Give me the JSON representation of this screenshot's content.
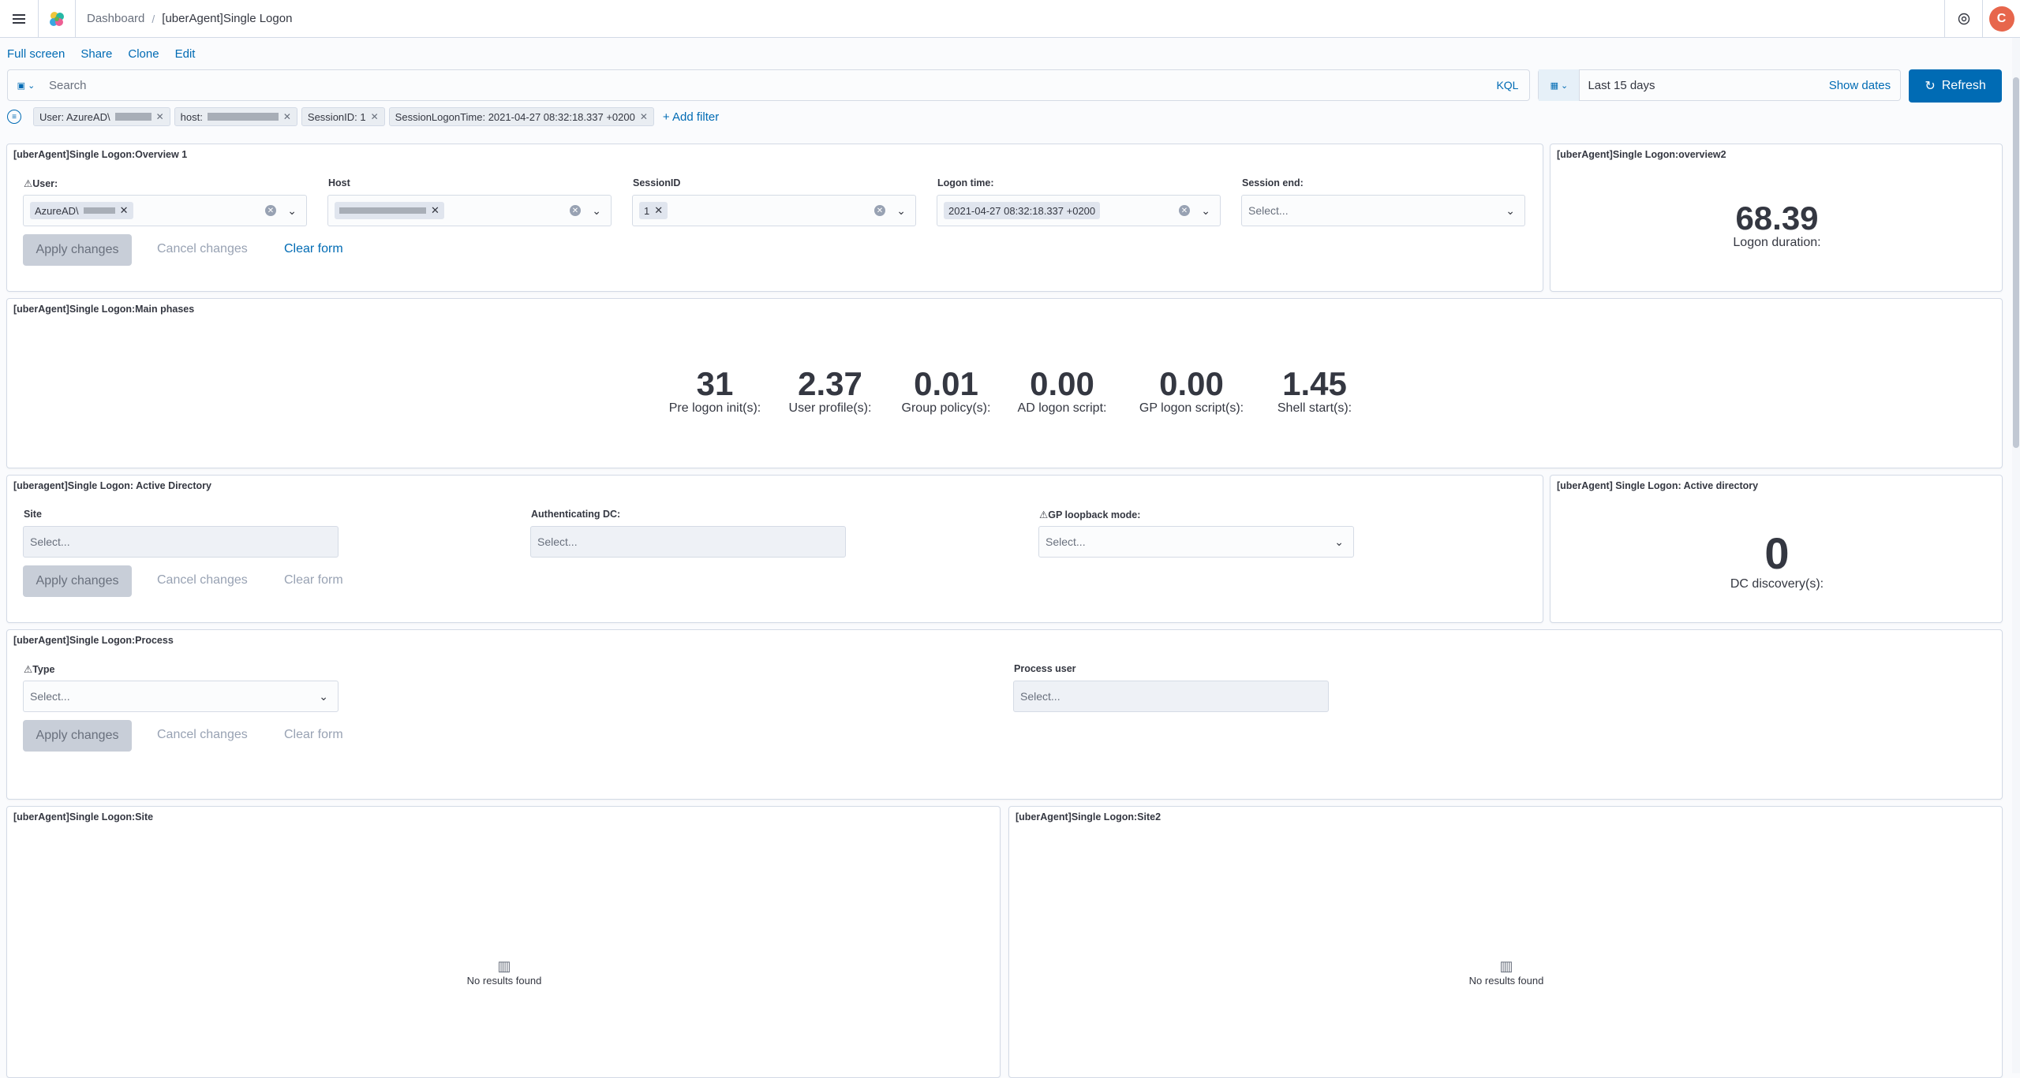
{
  "header": {
    "breadcrumb_dashboard": "Dashboard",
    "breadcrumb_current": "[uberAgent]Single Logon",
    "avatar_initial": "C"
  },
  "actions": {
    "full_screen": "Full screen",
    "share": "Share",
    "clone": "Clone",
    "edit": "Edit"
  },
  "query": {
    "search_placeholder": "Search",
    "language": "KQL",
    "time_range": "Last 15 days",
    "show_dates": "Show dates",
    "refresh": "Refresh"
  },
  "filters": [
    "User: AzureAD\\",
    "host:",
    "SessionID: 1",
    "SessionLogonTime: 2021-04-27 08:32:18.337 +0200"
  ],
  "add_filter": "+ Add filter",
  "overview1": {
    "title": "[uberAgent]Single Logon:Overview 1",
    "user_label": "User:",
    "user_value": "AzureAD\\",
    "host_label": "Host",
    "session_label": "SessionID",
    "session_value": "1",
    "logon_label": "Logon time:",
    "logon_value": "2021-04-27 08:32:18.337 +0200",
    "session_end_label": "Session end:",
    "select_placeholder": "Select...",
    "apply": "Apply changes",
    "cancel": "Cancel changes",
    "clear": "Clear form"
  },
  "overview2": {
    "title": "[uberAgent]Single Logon:overview2",
    "value": "68.39",
    "label": "Logon duration:"
  },
  "main_phases": {
    "title": "[uberAgent]Single Logon:Main phases",
    "metrics": [
      {
        "value": "31",
        "label": "Pre logon init(s):"
      },
      {
        "value": "2.37",
        "label": "User profile(s):"
      },
      {
        "value": "0.01",
        "label": "Group policy(s):"
      },
      {
        "value": "0.00",
        "label": "AD logon script:"
      },
      {
        "value": "0.00",
        "label": "GP logon script(s):"
      },
      {
        "value": "1.45",
        "label": "Shell start(s):"
      }
    ]
  },
  "ad_controls": {
    "title": "[uberagent]Single Logon: Active Directory",
    "site_label": "Site",
    "auth_dc_label": "Authenticating DC:",
    "gp_loopback_label": "GP loopback mode:",
    "select_placeholder": "Select...",
    "apply": "Apply changes",
    "cancel": "Cancel changes",
    "clear": "Clear form"
  },
  "ad_metric": {
    "title": "[uberAgent] Single Logon: Active directory",
    "value": "0",
    "label": "DC discovery(s):"
  },
  "process": {
    "title": "[uberAgent]Single Logon:Process",
    "type_label": "Type",
    "process_user_label": "Process user",
    "select_placeholder": "Select...",
    "apply": "Apply changes",
    "cancel": "Cancel changes",
    "clear": "Clear form"
  },
  "site": {
    "title": "[uberAgent]Single Logon:Site",
    "empty": "No results found"
  },
  "site2": {
    "title": "[uberAgent]Single Logon:Site2",
    "empty": "No results found"
  },
  "colors": {
    "accent": "#006bb4",
    "avatar": "#e7664c"
  }
}
